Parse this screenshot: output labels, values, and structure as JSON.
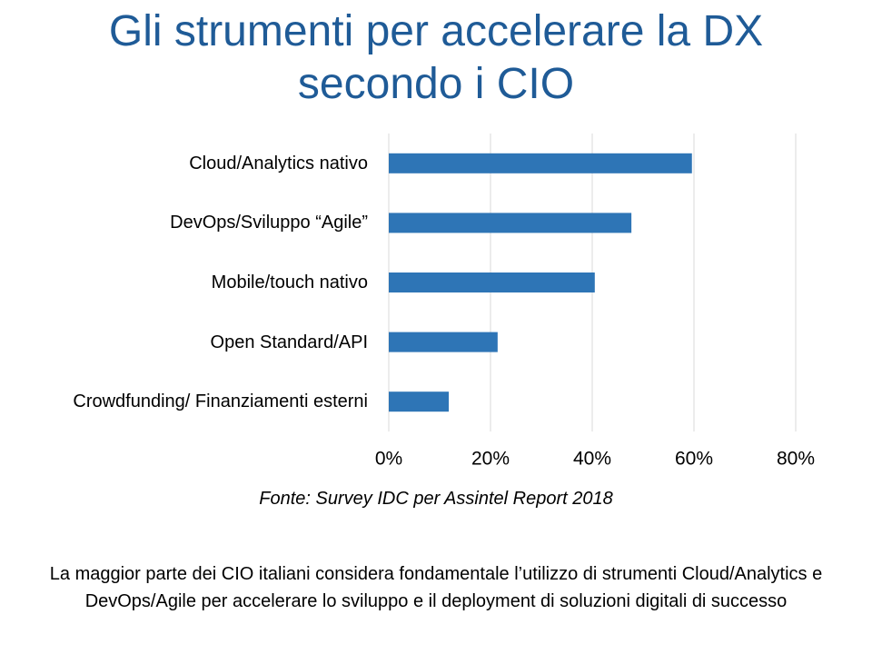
{
  "chart_data": {
    "type": "bar",
    "orientation": "horizontal",
    "title": "Gli strumenti per accelerare la DX secondo i CIO",
    "categories": [
      "Cloud/Analytics nativo",
      "DevOps/Sviluppo “Agile”",
      "Mobile/touch nativo",
      "Open Standard/API",
      "Crowdfunding/ Finanziamenti esterni"
    ],
    "values": [
      59.6,
      47.7,
      40.5,
      21.4,
      11.8
    ],
    "color": "#2e75b6",
    "xlim": [
      0,
      80
    ],
    "xticks": [
      {
        "value": 0,
        "label": "0%"
      },
      {
        "value": 20,
        "label": "20%"
      },
      {
        "value": 40,
        "label": "40%"
      },
      {
        "value": 60,
        "label": "60%"
      },
      {
        "value": 80,
        "label": "80%"
      }
    ],
    "grid": true,
    "source": "Fonte: Survey IDC per Assintel Report 2018",
    "note": "La maggior parte dei CIO italiani considera fondamentale l’utilizzo di strumenti Cloud/Analytics e DevOps/Agile per accelerare lo sviluppo e il deployment di soluzioni digitali di successo"
  }
}
